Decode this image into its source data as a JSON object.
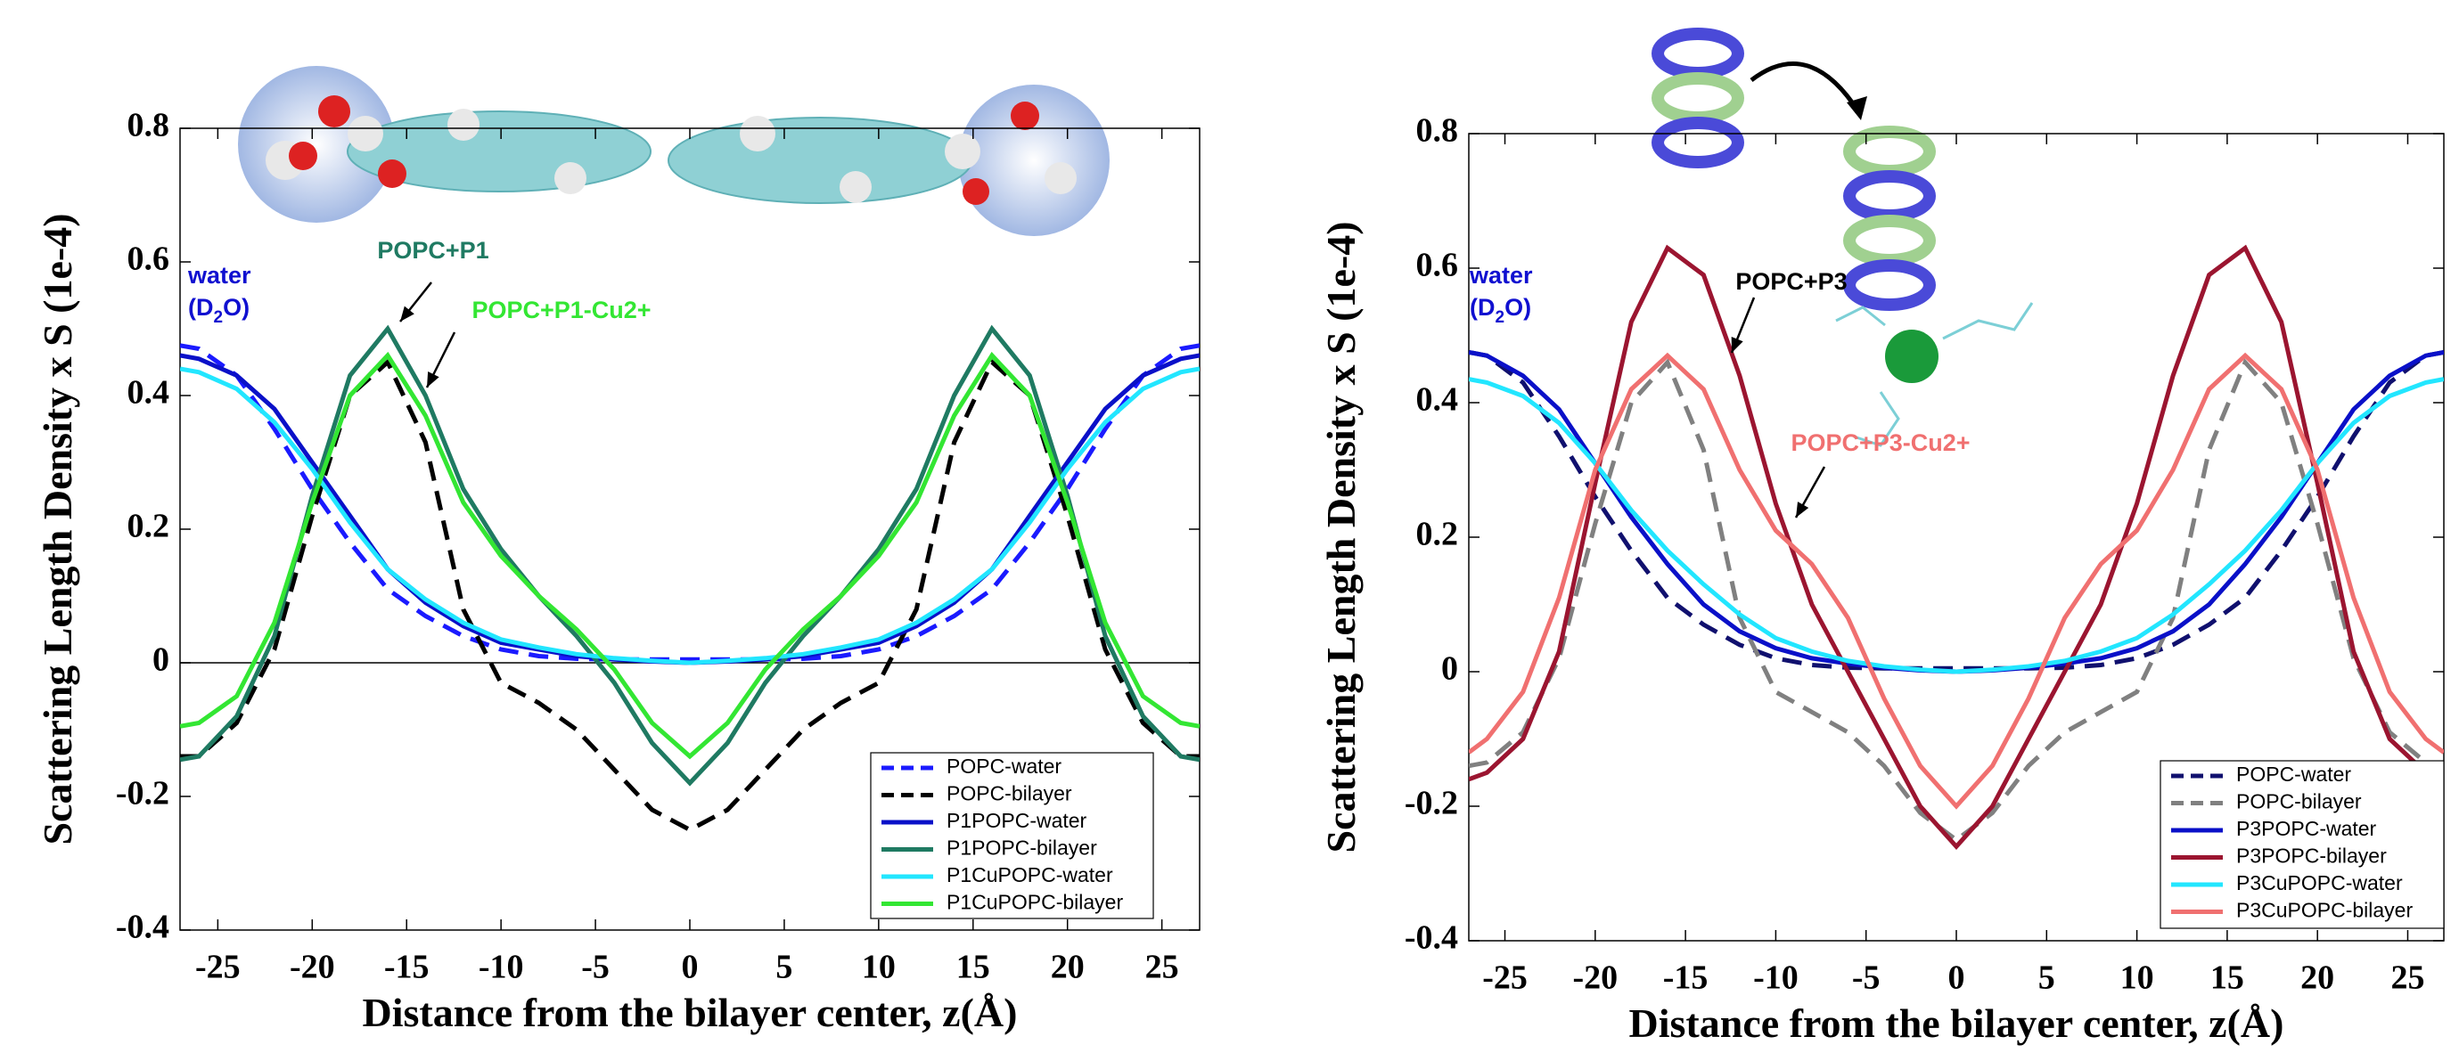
{
  "chart_data": [
    {
      "type": "line",
      "y_label": "Scattering Length Density x S (1e-4)",
      "x_label": "Distance from the bilayer center, z(Å)",
      "x": [
        -27,
        -26,
        -24,
        -22,
        -20,
        -18,
        -16,
        -14,
        -12,
        -10,
        -8,
        -6,
        -4,
        -2,
        0,
        2,
        4,
        6,
        8,
        10,
        12,
        14,
        16,
        18,
        20,
        22,
        24,
        26,
        27
      ],
      "xlim": [
        -27,
        27
      ],
      "xticks": [
        -25,
        -20,
        -15,
        -10,
        -5,
        0,
        5,
        10,
        15,
        20,
        25
      ],
      "ylim": [
        -0.4,
        0.8
      ],
      "yticks": [
        0.8,
        0.6,
        0.4,
        0.2,
        0,
        -0.2,
        -0.4
      ],
      "zero_line": true,
      "legend": "lower right",
      "water_label": [
        "water",
        "(D",
        "2",
        "O)"
      ],
      "annotations": [
        {
          "text": "POPC+P1",
          "color": "#1f7a62"
        },
        {
          "text": "POPC+P1-Cu2+",
          "color": "#33e633"
        }
      ],
      "series": [
        {
          "name": "POPC-water",
          "color": "#1a1aff",
          "dashed": true,
          "values": [
            0.475,
            0.47,
            0.43,
            0.35,
            0.26,
            0.18,
            0.11,
            0.07,
            0.04,
            0.02,
            0.01,
            0.006,
            0.005,
            0.005,
            0.005,
            0.005,
            0.005,
            0.006,
            0.01,
            0.02,
            0.04,
            0.07,
            0.11,
            0.18,
            0.26,
            0.35,
            0.43,
            0.47,
            0.475
          ]
        },
        {
          "name": "POPC-bilayer",
          "color": "#000000",
          "dashed": true,
          "values": [
            -0.14,
            -0.14,
            -0.09,
            0.02,
            0.22,
            0.4,
            0.45,
            0.33,
            0.08,
            -0.03,
            -0.06,
            -0.1,
            -0.16,
            -0.22,
            -0.25,
            -0.22,
            -0.16,
            -0.1,
            -0.06,
            -0.03,
            0.08,
            0.33,
            0.45,
            0.4,
            0.22,
            0.02,
            -0.09,
            -0.14,
            -0.14
          ]
        },
        {
          "name": "P1POPC-water",
          "color": "#0a10c8",
          "dashed": false,
          "values": [
            0.46,
            0.455,
            0.43,
            0.38,
            0.3,
            0.22,
            0.14,
            0.09,
            0.055,
            0.03,
            0.02,
            0.01,
            0.005,
            0.002,
            0,
            0.002,
            0.005,
            0.01,
            0.02,
            0.03,
            0.055,
            0.09,
            0.14,
            0.22,
            0.3,
            0.38,
            0.43,
            0.455,
            0.46
          ]
        },
        {
          "name": "P1POPC-bilayer",
          "color": "#1f7a62",
          "dashed": false,
          "values": [
            -0.145,
            -0.14,
            -0.08,
            0.04,
            0.25,
            0.43,
            0.5,
            0.4,
            0.26,
            0.17,
            0.1,
            0.04,
            -0.03,
            -0.12,
            -0.18,
            -0.12,
            -0.03,
            0.04,
            0.1,
            0.17,
            0.26,
            0.4,
            0.5,
            0.43,
            0.25,
            0.04,
            -0.08,
            -0.14,
            -0.145
          ]
        },
        {
          "name": "P1CuPOPC-water",
          "color": "#22e6ff",
          "dashed": false,
          "values": [
            0.44,
            0.435,
            0.41,
            0.36,
            0.29,
            0.21,
            0.14,
            0.095,
            0.06,
            0.035,
            0.023,
            0.013,
            0.007,
            0.003,
            0,
            0.003,
            0.007,
            0.013,
            0.023,
            0.035,
            0.06,
            0.095,
            0.14,
            0.21,
            0.29,
            0.36,
            0.41,
            0.435,
            0.44
          ]
        },
        {
          "name": "P1CuPOPC-bilayer",
          "color": "#33e633",
          "dashed": false,
          "values": [
            -0.095,
            -0.09,
            -0.05,
            0.06,
            0.24,
            0.4,
            0.46,
            0.37,
            0.24,
            0.16,
            0.1,
            0.05,
            -0.01,
            -0.09,
            -0.14,
            -0.09,
            -0.01,
            0.05,
            0.1,
            0.16,
            0.24,
            0.37,
            0.46,
            0.4,
            0.24,
            0.06,
            -0.05,
            -0.09,
            -0.095
          ]
        }
      ]
    },
    {
      "type": "line",
      "y_label": "Scattering Length Density x S (1e-4)",
      "x_label": "Distance from the bilayer center, z(Å)",
      "x": [
        -27,
        -26,
        -24,
        -22,
        -20,
        -18,
        -16,
        -14,
        -12,
        -10,
        -8,
        -6,
        -4,
        -2,
        0,
        2,
        4,
        6,
        8,
        10,
        12,
        14,
        16,
        18,
        20,
        22,
        24,
        26,
        27
      ],
      "xlim": [
        -27,
        27
      ],
      "xticks": [
        -25,
        -20,
        -15,
        -10,
        -5,
        0,
        5,
        10,
        15,
        20,
        25
      ],
      "ylim": [
        -0.4,
        0.8
      ],
      "yticks": [
        0.8,
        0.6,
        0.4,
        0.2,
        0,
        -0.2,
        -0.4
      ],
      "zero_line": false,
      "legend": "lower right",
      "water_label": [
        "water",
        "(D",
        "2",
        "O)"
      ],
      "annotations": [
        {
          "text": "POPC+P3",
          "color": "#000000"
        },
        {
          "text": "POPC+P3-Cu2+",
          "color": "#f07070"
        }
      ],
      "series": [
        {
          "name": "POPC-water",
          "color": "#10106e",
          "dashed": true,
          "values": [
            0.475,
            0.47,
            0.43,
            0.35,
            0.26,
            0.18,
            0.11,
            0.07,
            0.04,
            0.02,
            0.01,
            0.006,
            0.005,
            0.005,
            0.005,
            0.005,
            0.005,
            0.006,
            0.01,
            0.02,
            0.04,
            0.07,
            0.11,
            0.18,
            0.26,
            0.35,
            0.43,
            0.47,
            0.475
          ]
        },
        {
          "name": "POPC-bilayer",
          "color": "#808080",
          "dashed": true,
          "values": [
            -0.14,
            -0.135,
            -0.09,
            0.02,
            0.22,
            0.4,
            0.46,
            0.33,
            0.08,
            -0.03,
            -0.06,
            -0.09,
            -0.14,
            -0.21,
            -0.25,
            -0.21,
            -0.14,
            -0.09,
            -0.06,
            -0.03,
            0.08,
            0.33,
            0.46,
            0.4,
            0.22,
            0.02,
            -0.09,
            -0.135,
            -0.14
          ]
        },
        {
          "name": "P3POPC-water",
          "color": "#0a10c8",
          "dashed": false,
          "values": [
            0.475,
            0.47,
            0.44,
            0.39,
            0.31,
            0.23,
            0.16,
            0.1,
            0.06,
            0.035,
            0.02,
            0.012,
            0.006,
            0.002,
            0,
            0.002,
            0.006,
            0.012,
            0.02,
            0.035,
            0.06,
            0.1,
            0.16,
            0.23,
            0.31,
            0.39,
            0.44,
            0.47,
            0.475
          ]
        },
        {
          "name": "P3POPC-bilayer",
          "color": "#9b1530",
          "dashed": false,
          "values": [
            -0.16,
            -0.15,
            -0.1,
            0.03,
            0.28,
            0.52,
            0.63,
            0.59,
            0.44,
            0.25,
            0.1,
            0.0,
            -0.1,
            -0.2,
            -0.26,
            -0.2,
            -0.1,
            0.0,
            0.1,
            0.25,
            0.44,
            0.59,
            0.63,
            0.52,
            0.28,
            0.03,
            -0.1,
            -0.15,
            -0.16
          ]
        },
        {
          "name": "P3CuPOPC-water",
          "color": "#22e6ff",
          "dashed": false,
          "values": [
            0.435,
            0.43,
            0.41,
            0.37,
            0.31,
            0.24,
            0.18,
            0.13,
            0.085,
            0.05,
            0.03,
            0.016,
            0.008,
            0.003,
            0,
            0.003,
            0.008,
            0.016,
            0.03,
            0.05,
            0.085,
            0.13,
            0.18,
            0.24,
            0.31,
            0.37,
            0.41,
            0.43,
            0.435
          ]
        },
        {
          "name": "P3CuPOPC-bilayer",
          "color": "#f07070",
          "dashed": false,
          "values": [
            -0.12,
            -0.1,
            -0.03,
            0.11,
            0.3,
            0.42,
            0.47,
            0.42,
            0.3,
            0.21,
            0.16,
            0.08,
            -0.04,
            -0.14,
            -0.2,
            -0.14,
            -0.04,
            0.08,
            0.16,
            0.21,
            0.3,
            0.42,
            0.47,
            0.42,
            0.3,
            0.11,
            -0.03,
            -0.1,
            -0.12
          ]
        }
      ]
    }
  ]
}
